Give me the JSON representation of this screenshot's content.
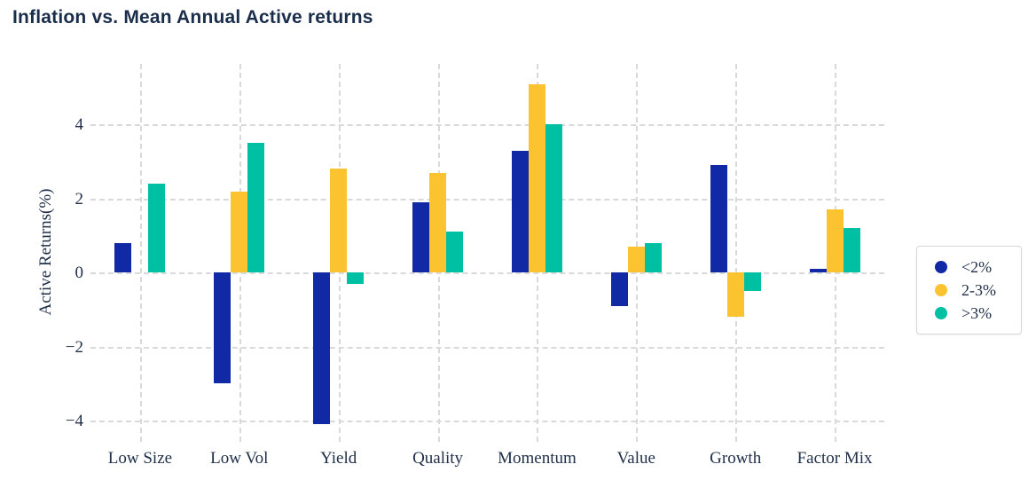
{
  "title": "Inflation vs. Mean Annual Active returns",
  "chart_data": {
    "type": "bar",
    "title": "Inflation vs. Mean Annual Active returns",
    "xlabel": "",
    "ylabel": "Active Returns(%)",
    "categories": [
      "Low Size",
      "Low Vol",
      "Yield",
      "Quality",
      "Momentum",
      "Value",
      "Growth",
      "Factor Mix"
    ],
    "series": [
      {
        "name": "<2%",
        "color": "#1229a5",
        "values": [
          0.8,
          -3.0,
          -4.1,
          1.9,
          3.3,
          -0.9,
          2.9,
          0.1
        ]
      },
      {
        "name": "2-3%",
        "color": "#fcc331",
        "values": [
          0.0,
          2.2,
          2.8,
          2.7,
          5.1,
          0.7,
          -1.2,
          1.7
        ]
      },
      {
        "name": ">3%",
        "color": "#00c0a4",
        "values": [
          2.4,
          3.5,
          -0.3,
          1.1,
          4.0,
          0.8,
          -0.5,
          1.2
        ]
      }
    ],
    "yticks": [
      -4,
      -2,
      0,
      2,
      4
    ],
    "ytick_labels": [
      "−4",
      "−2",
      "0",
      "2",
      "4"
    ],
    "ylim": [
      -4.57,
      5.64
    ],
    "grid": "dashed",
    "gridline_color": "#d9d9d9",
    "legend_position": "right",
    "background_color": "#ffffff",
    "title_color": "#1a2d4a",
    "axis_text_color": "#203049"
  }
}
